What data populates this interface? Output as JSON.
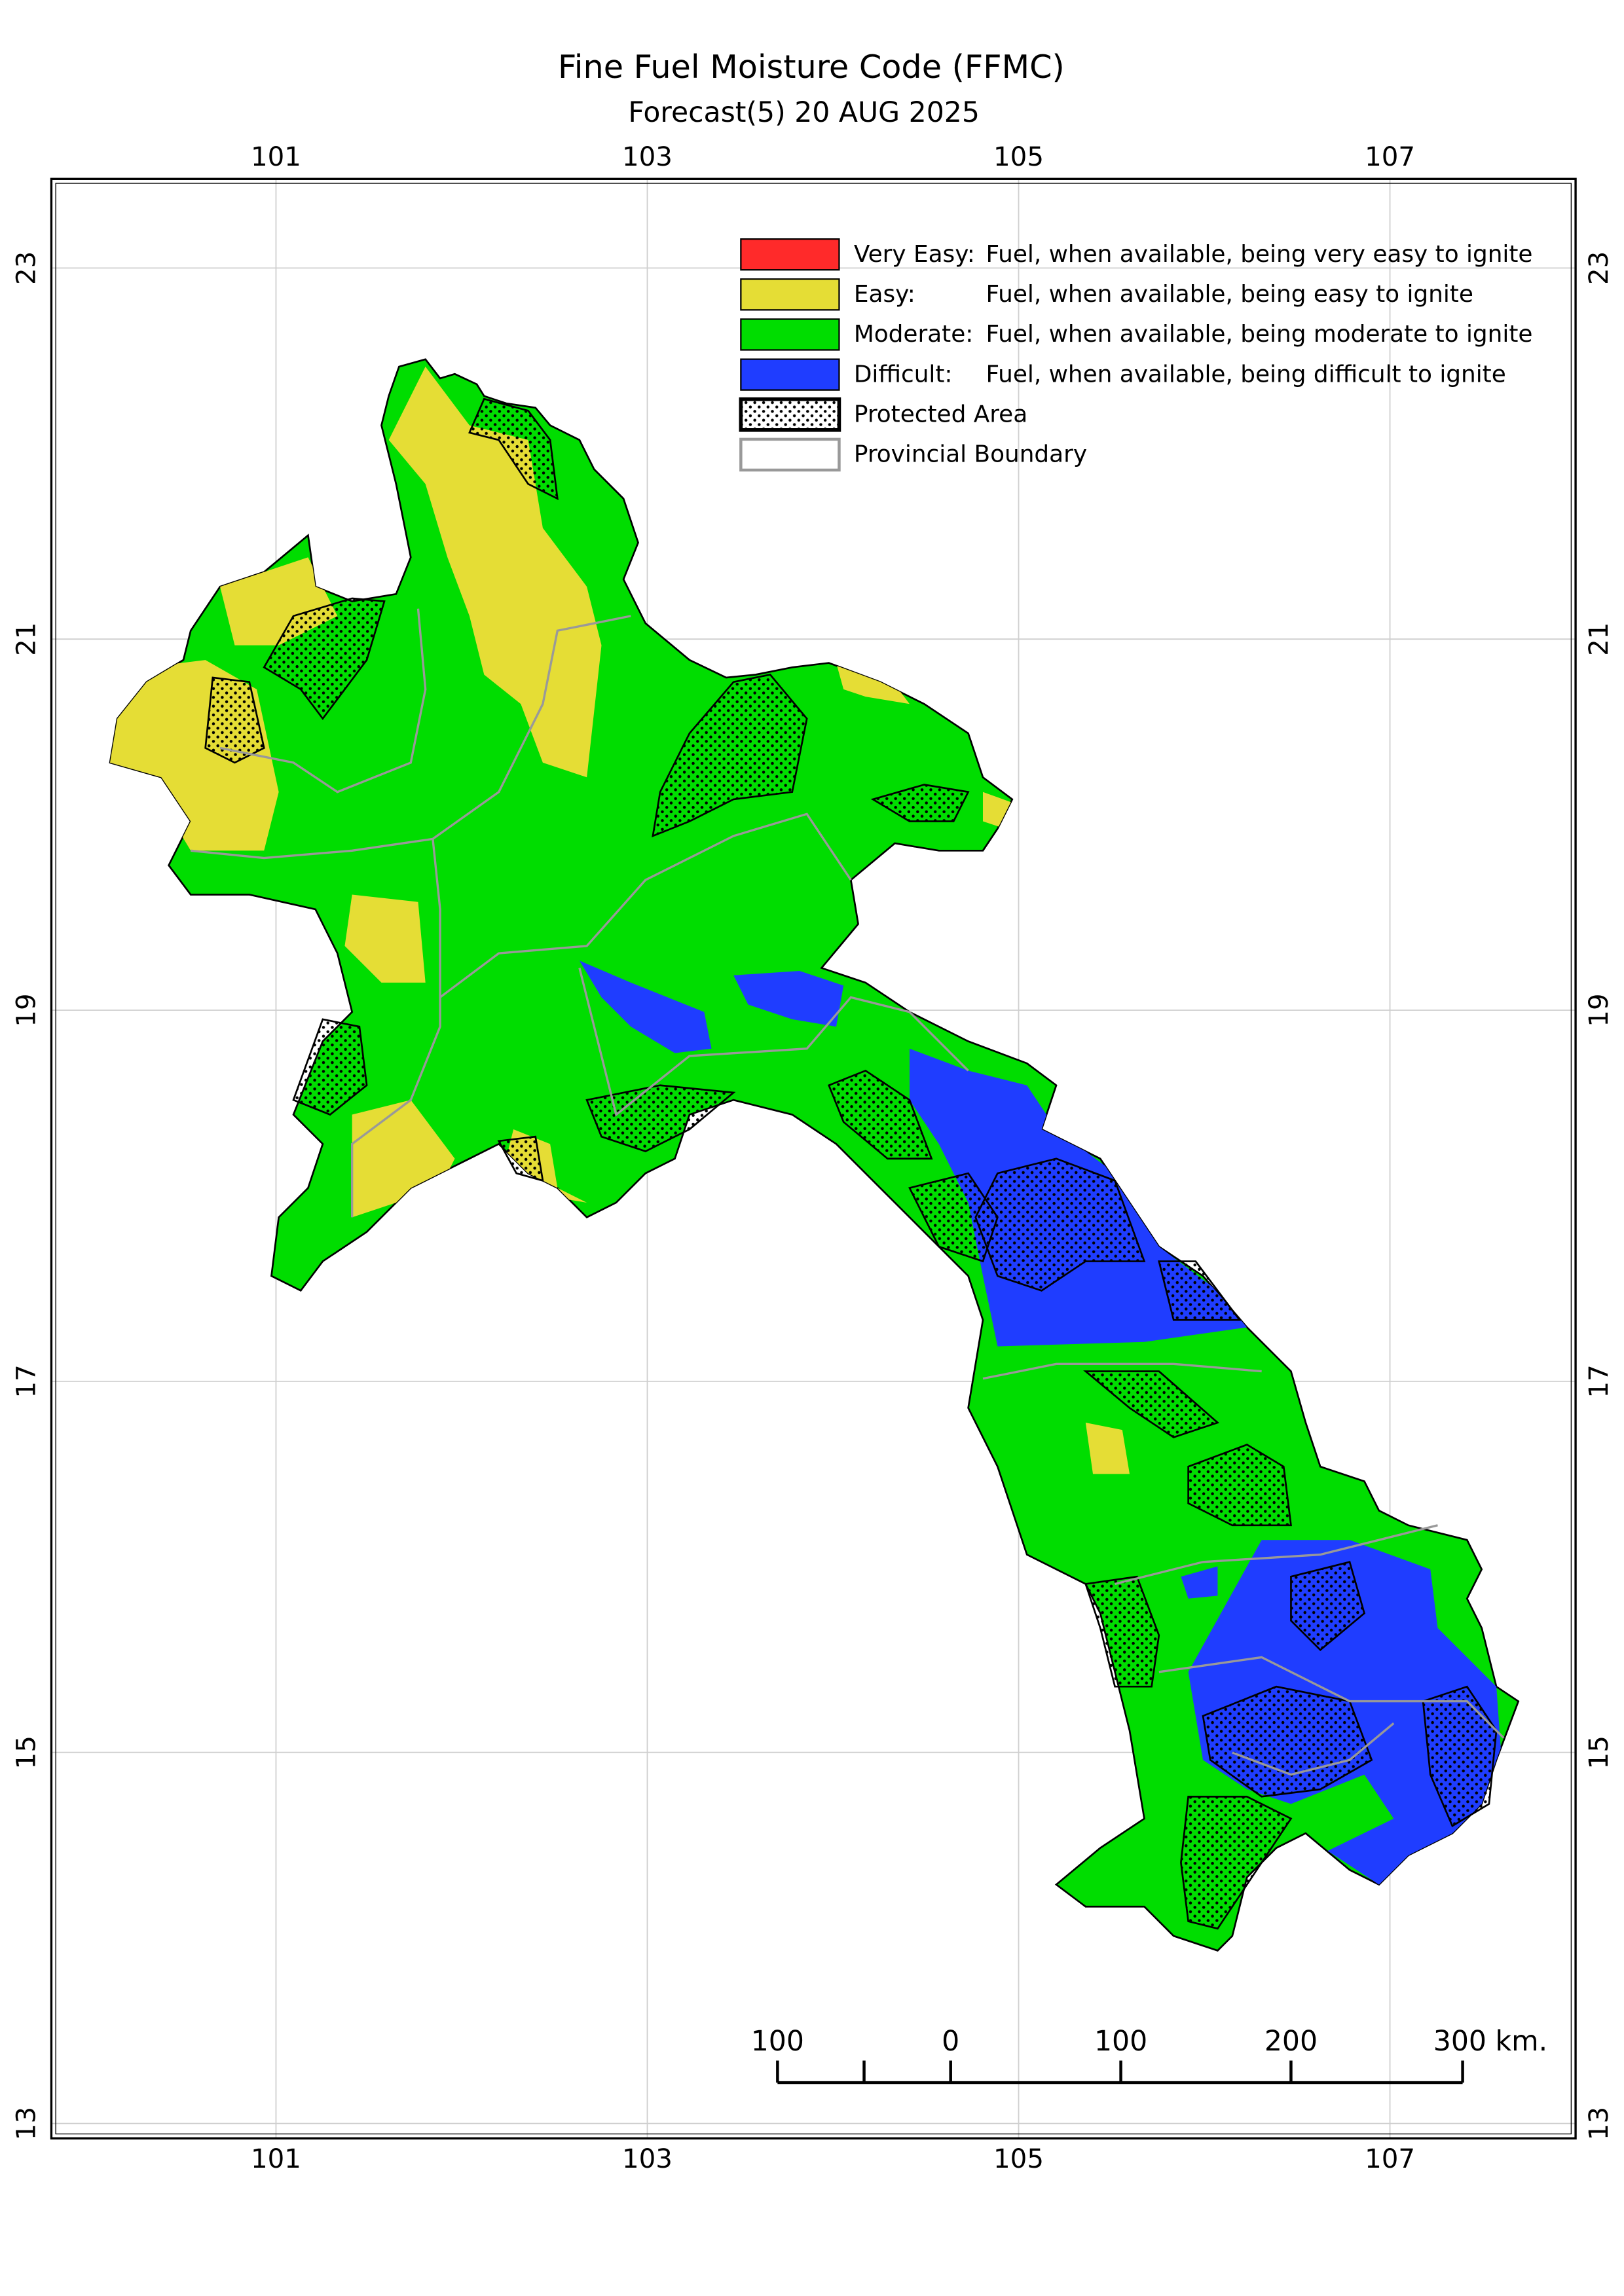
{
  "header": {
    "title": "Fine Fuel Moisture Code (FFMC)",
    "subtitle": "Forecast(5) 20 AUG 2025"
  },
  "map": {
    "xlim": [
      99.79,
      108.0
    ],
    "ylim": [
      12.92,
      23.48
    ],
    "xticks": [
      101,
      103,
      105,
      107
    ],
    "yticks": [
      13,
      15,
      17,
      19,
      21,
      23
    ],
    "grid": true
  },
  "legend": [
    {
      "label": "Very Easy:",
      "description": "Fuel, when available, being very easy to ignite",
      "color": "#ff2a2a"
    },
    {
      "label": "Easy:",
      "description": "Fuel, when available, being easy to ignite",
      "color": "#e5dd35"
    },
    {
      "label": "Moderate:",
      "description": "Fuel, when available, being moderate to ignite",
      "color": "#00dd00"
    },
    {
      "label": "Difficult:",
      "description": "Fuel, when available, being difficult to ignite",
      "color": "#1f3dff"
    },
    {
      "label": "Protected Area"
    },
    {
      "label": "Provincial Boundary"
    }
  ],
  "scale_bar": [
    "100",
    "0",
    "100",
    "200",
    "300 km."
  ]
}
